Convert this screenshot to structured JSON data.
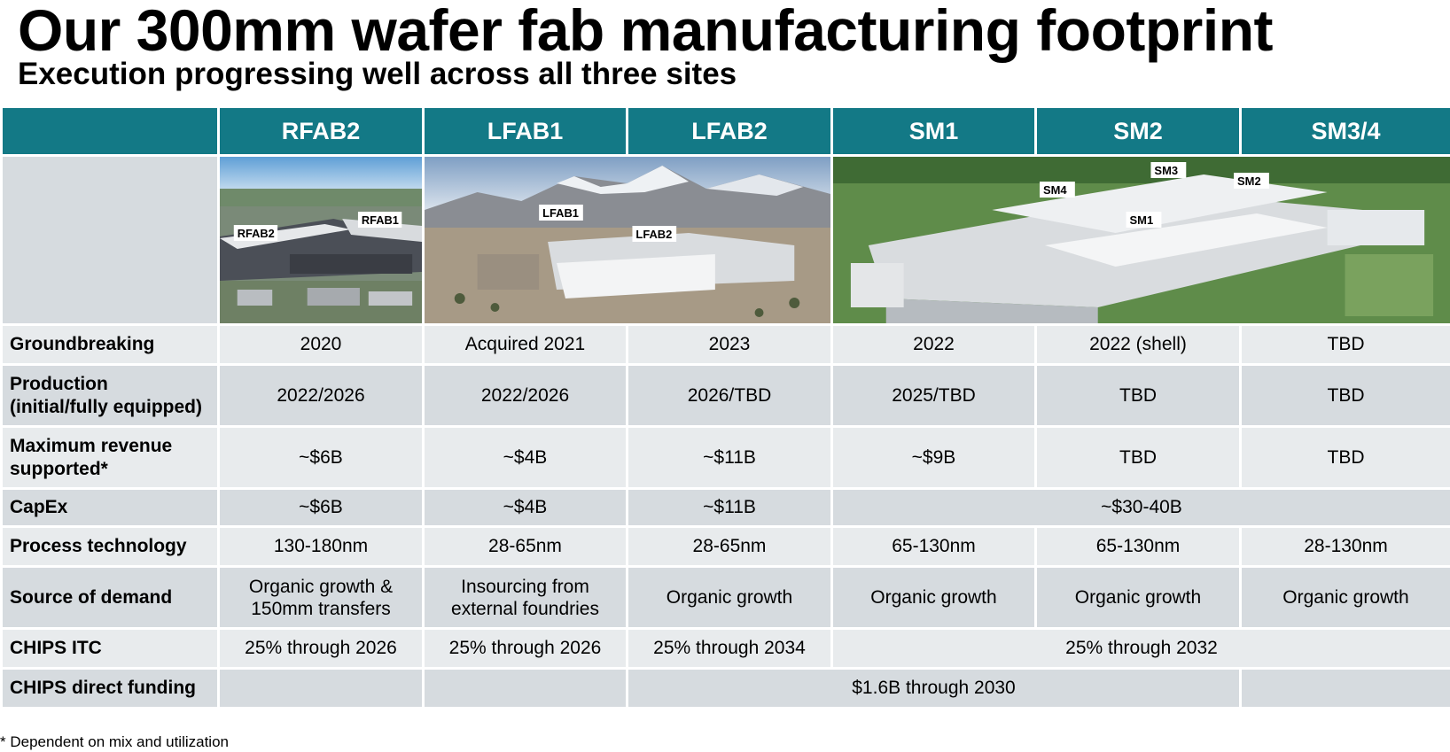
{
  "header": {
    "title": "Our 300mm wafer fab manufacturing footprint",
    "subtitle": "Execution progressing well across all three sites"
  },
  "columns": [
    "RFAB2",
    "LFAB1",
    "LFAB2",
    "SM1",
    "SM2",
    "SM3/4"
  ],
  "photos": {
    "rfab": {
      "labels": [
        "RFAB2",
        "RFAB1"
      ]
    },
    "lfab": {
      "labels": [
        "LFAB1",
        "LFAB2"
      ]
    },
    "sm": {
      "labels": [
        "SM3",
        "SM4",
        "SM2",
        "SM1"
      ]
    }
  },
  "rows": {
    "groundbreaking": {
      "label": "Groundbreaking",
      "values": [
        "2020",
        "Acquired 2021",
        "2023",
        "2022",
        "2022 (shell)",
        "TBD"
      ]
    },
    "production": {
      "label_line1": "Production",
      "label_line2": "(initial/fully equipped)",
      "values": [
        "2022/2026",
        "2022/2026",
        "2026/TBD",
        "2025/TBD",
        "TBD",
        "TBD"
      ]
    },
    "revenue": {
      "label_line1": "Maximum revenue",
      "label_line2": "supported*",
      "values": [
        "~$6B",
        "~$4B",
        "~$11B",
        "~$9B",
        "TBD",
        "TBD"
      ]
    },
    "capex": {
      "label": "CapEx",
      "values": [
        "~$6B",
        "~$4B",
        "~$11B"
      ],
      "merged_sm": "~$30-40B"
    },
    "process": {
      "label": "Process technology",
      "values": [
        "130-180nm",
        "28-65nm",
        "28-65nm",
        "65-130nm",
        "65-130nm",
        "28-130nm"
      ]
    },
    "demand": {
      "label": "Source of demand",
      "values": [
        [
          "Organic growth &",
          "150mm transfers"
        ],
        [
          "Insourcing from",
          "external foundries"
        ],
        [
          "Organic growth"
        ],
        [
          "Organic growth"
        ],
        [
          "Organic growth"
        ],
        [
          "Organic growth"
        ]
      ]
    },
    "chips_itc": {
      "label": "CHIPS ITC",
      "values": [
        "25% through 2026",
        "25% through 2026",
        "25% through 2034"
      ],
      "merged_sm": "25% through 2032"
    },
    "chips_funding": {
      "label": "CHIPS direct funding",
      "rfab2": "",
      "lfab1": "",
      "merged": "$1.6B through 2030",
      "sm34": ""
    }
  },
  "footnote": "* Dependent on mix and utilization",
  "colors": {
    "header": "#137986",
    "row_light": "#e8ebed",
    "row_dark": "#d6dbdf"
  }
}
